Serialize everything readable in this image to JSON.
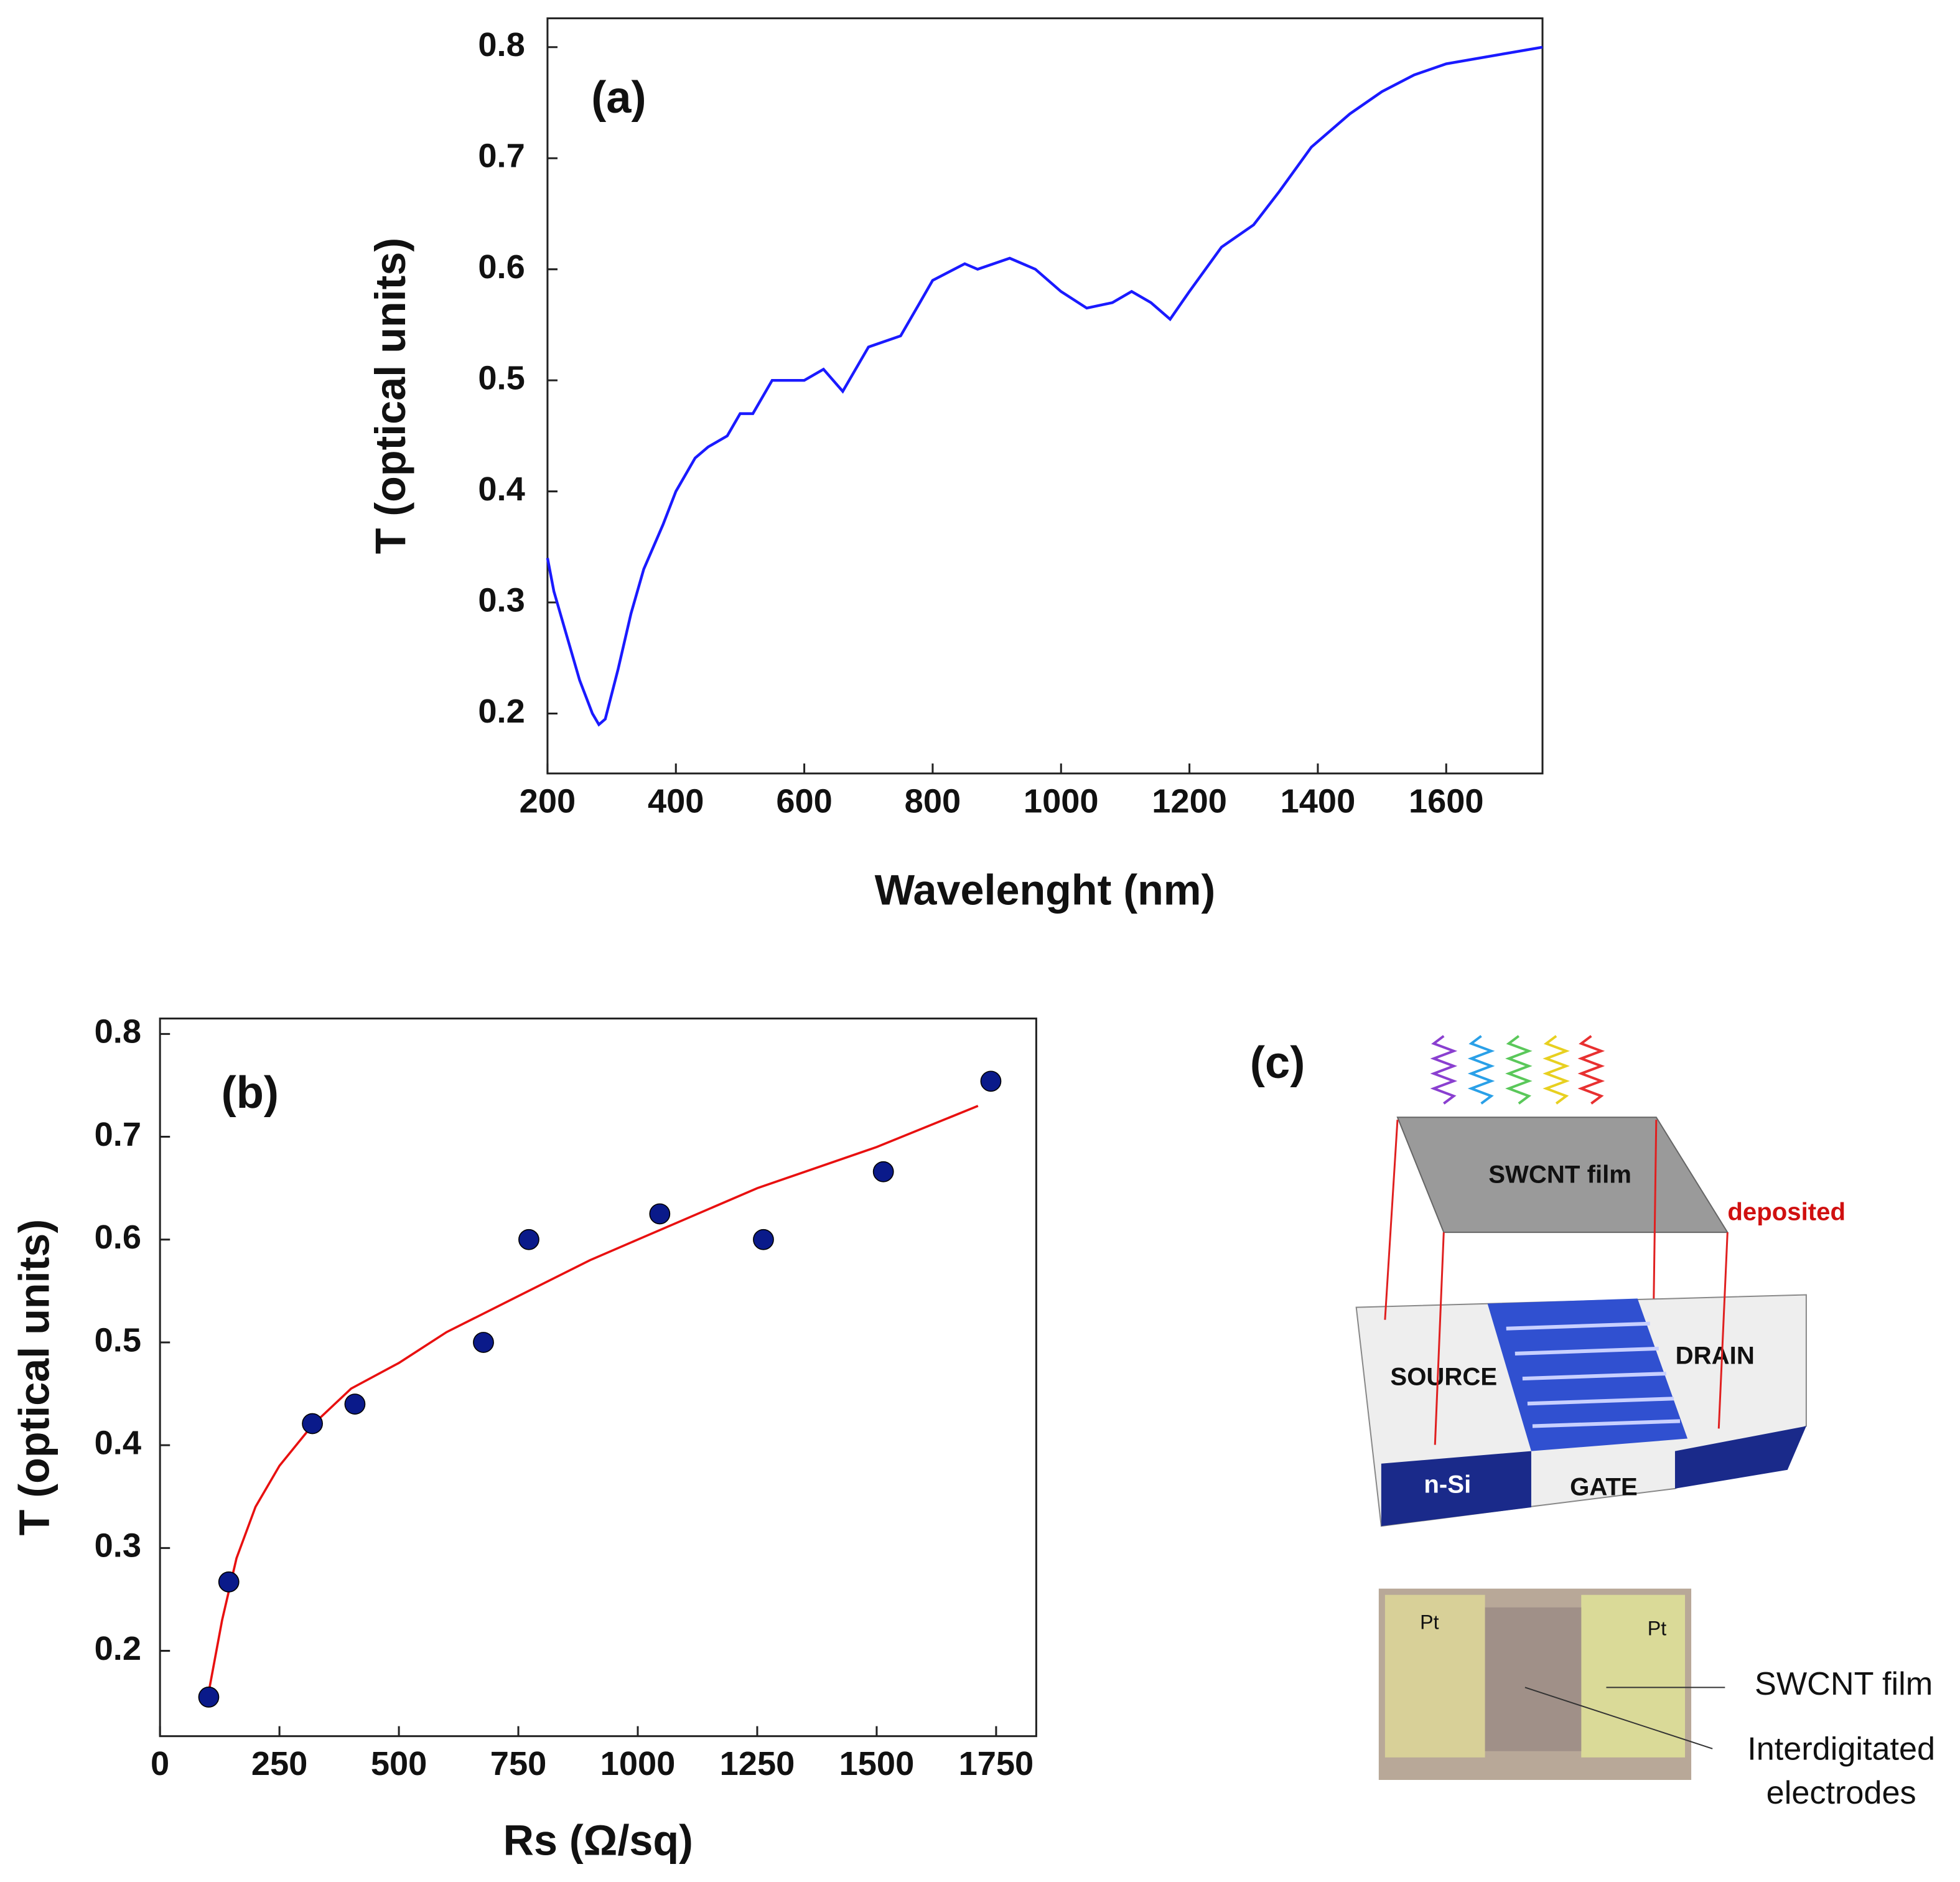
{
  "chart_data": [
    {
      "type": "line",
      "panel_label": "(a)",
      "x_label": "Wavelenght (nm)",
      "y_label": "T (optical units)",
      "color": "#1a1aff",
      "x": [
        200,
        210,
        230,
        250,
        270,
        280,
        290,
        310,
        330,
        350,
        380,
        400,
        430,
        450,
        480,
        500,
        520,
        550,
        600,
        630,
        660,
        700,
        750,
        780,
        800,
        850,
        870,
        920,
        960,
        1000,
        1040,
        1080,
        1110,
        1140,
        1170,
        1200,
        1250,
        1300,
        1340,
        1390,
        1450,
        1500,
        1550,
        1600,
        1700,
        1750
      ],
      "values": [
        0.34,
        0.31,
        0.27,
        0.23,
        0.2,
        0.19,
        0.195,
        0.24,
        0.29,
        0.33,
        0.37,
        0.4,
        0.43,
        0.44,
        0.45,
        0.47,
        0.47,
        0.5,
        0.5,
        0.51,
        0.49,
        0.53,
        0.54,
        0.57,
        0.59,
        0.605,
        0.6,
        0.61,
        0.6,
        0.58,
        0.565,
        0.57,
        0.58,
        0.57,
        0.555,
        0.58,
        0.62,
        0.64,
        0.67,
        0.71,
        0.74,
        0.76,
        0.775,
        0.785,
        0.795,
        0.8
      ],
      "xlim": [
        200,
        1750
      ],
      "ylim": [
        0.146,
        0.826
      ],
      "xticks": [
        200,
        400,
        600,
        800,
        1000,
        1200,
        1400,
        1600
      ],
      "yticks": [
        0.2,
        0.3,
        0.4,
        0.5,
        0.6,
        0.7,
        0.8
      ]
    },
    {
      "type": "scatter",
      "panel_label": "(b)",
      "x_label": "Rs (Ω/sq)",
      "y_label": "T (optical units)",
      "color": "#0a1a8a",
      "x": [
        102,
        144,
        319,
        408,
        677,
        772,
        1046,
        1263,
        1514,
        1739
      ],
      "values": [
        0.155,
        0.267,
        0.421,
        0.44,
        0.5,
        0.6,
        0.625,
        0.6,
        0.666,
        0.754
      ],
      "fit": {
        "color": "#e81010",
        "x": [
          102,
          130,
          160,
          200,
          250,
          320,
          400,
          500,
          600,
          750,
          900,
          1000,
          1250,
          1500,
          1712
        ],
        "values": [
          0.16,
          0.23,
          0.29,
          0.34,
          0.38,
          0.42,
          0.455,
          0.48,
          0.51,
          0.545,
          0.58,
          0.6,
          0.65,
          0.69,
          0.73
        ]
      },
      "xlim": [
        0,
        1834
      ],
      "ylim": [
        0.117,
        0.815
      ],
      "xticks": [
        0,
        250,
        500,
        750,
        1000,
        1250,
        1500,
        1750
      ],
      "yticks": [
        0.2,
        0.3,
        0.4,
        0.5,
        0.6,
        0.7,
        0.8
      ]
    }
  ],
  "diagram": {
    "panel_label": "(c)",
    "film": "SWCNT film",
    "deposited": "deposited",
    "source": "SOURCE",
    "drain": "DRAIN",
    "substrate": "n-Si",
    "gate": "GATE",
    "pt_left": "Pt",
    "pt_right": "Pt",
    "photo_film": "SWCNT film",
    "electrodes": [
      "Interdigitated",
      "electrodes"
    ]
  }
}
